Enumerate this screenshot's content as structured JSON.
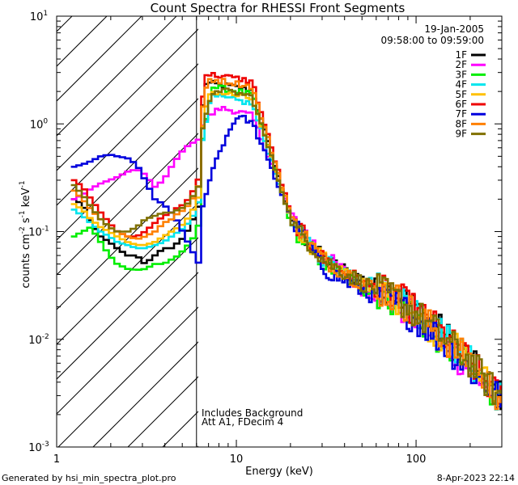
{
  "chart_data": {
    "type": "line",
    "title": "Count Spectra for RHESSI Front Segments",
    "xlabel": "Energy (keV)",
    "ylabel_parts": {
      "base": "counts cm",
      "exp1": "-2",
      "mid": " s",
      "exp2": "-1",
      "end": " keV",
      "exp3": "-1"
    },
    "xscale": "log",
    "yscale": "log",
    "xlim": [
      1,
      300
    ],
    "ylim": [
      0.001,
      10
    ],
    "x_ticks": [
      {
        "value": 1,
        "label": "1"
      },
      {
        "value": 10,
        "label": "10"
      },
      {
        "value": 100,
        "label": "100"
      }
    ],
    "y_ticks": [
      {
        "value": 10,
        "base": "10",
        "exp": "1"
      },
      {
        "value": 1,
        "base": "10",
        "exp": "0"
      },
      {
        "value": 0.1,
        "base": "10",
        "exp": "-1"
      },
      {
        "value": 0.01,
        "base": "10",
        "exp": "-2"
      },
      {
        "value": 0.001,
        "base": "10",
        "exp": "-3"
      }
    ],
    "shaded_region": {
      "x_min": 1,
      "x_max": 6,
      "pattern": "diagonal-hatch"
    },
    "date": "19-Jan-2005",
    "time_range": "09:58:00 to 09:59:00",
    "annotations": [
      "Includes Background",
      "Att A1, FDecim 4"
    ],
    "series": [
      {
        "name": "1F",
        "color": "#000000",
        "low": [
          [
            1.2,
            0.2
          ],
          [
            1.35,
            0.18
          ],
          [
            1.5,
            0.12
          ],
          [
            1.7,
            0.09
          ],
          [
            1.9,
            0.08
          ],
          [
            2.1,
            0.07
          ],
          [
            2.4,
            0.06
          ],
          [
            2.7,
            0.06
          ],
          [
            3.0,
            0.05
          ],
          [
            3.4,
            0.06
          ],
          [
            3.8,
            0.07
          ],
          [
            4.2,
            0.07
          ],
          [
            4.6,
            0.08
          ],
          [
            5.0,
            0.09
          ],
          [
            5.4,
            0.12
          ],
          [
            5.8,
            0.15
          ],
          [
            6.0,
            0.18
          ]
        ],
        "peak": [
          6.6,
          2.4
        ],
        "tail": [
          [
            20,
            0.12
          ],
          [
            30,
            0.055
          ],
          [
            50,
            0.035
          ],
          [
            80,
            0.025
          ],
          [
            120,
            0.015
          ],
          [
            200,
            0.006
          ],
          [
            280,
            0.003
          ]
        ]
      },
      {
        "name": "2F",
        "color": "#ff00ff",
        "low": [
          [
            1.2,
            0.2
          ],
          [
            1.35,
            0.22
          ],
          [
            1.5,
            0.25
          ],
          [
            1.7,
            0.28
          ],
          [
            1.9,
            0.3
          ],
          [
            2.1,
            0.32
          ],
          [
            2.4,
            0.36
          ],
          [
            2.7,
            0.38
          ],
          [
            3.0,
            0.34
          ],
          [
            3.4,
            0.26
          ],
          [
            3.8,
            0.3
          ],
          [
            4.2,
            0.4
          ],
          [
            4.6,
            0.5
          ],
          [
            5.0,
            0.6
          ],
          [
            5.4,
            0.65
          ],
          [
            5.8,
            0.7
          ],
          [
            6.0,
            0.72
          ]
        ],
        "peak": [
          8.0,
          1.4
        ],
        "tail": [
          [
            20,
            0.14
          ],
          [
            30,
            0.06
          ],
          [
            50,
            0.03
          ],
          [
            80,
            0.02
          ],
          [
            120,
            0.012
          ],
          [
            200,
            0.005
          ],
          [
            280,
            0.003
          ]
        ]
      },
      {
        "name": "3F",
        "color": "#00ee00",
        "low": [
          [
            1.2,
            0.09
          ],
          [
            1.35,
            0.1
          ],
          [
            1.5,
            0.11
          ],
          [
            1.7,
            0.08
          ],
          [
            1.9,
            0.06
          ],
          [
            2.1,
            0.05
          ],
          [
            2.4,
            0.045
          ],
          [
            2.7,
            0.044
          ],
          [
            3.0,
            0.045
          ],
          [
            3.4,
            0.05
          ],
          [
            3.8,
            0.05
          ],
          [
            4.2,
            0.055
          ],
          [
            4.6,
            0.06
          ],
          [
            5.0,
            0.07
          ],
          [
            5.4,
            0.08
          ],
          [
            5.8,
            0.1
          ],
          [
            6.0,
            0.12
          ]
        ],
        "peak": [
          7.2,
          2.2
        ],
        "tail": [
          [
            20,
            0.11
          ],
          [
            30,
            0.05
          ],
          [
            50,
            0.03
          ],
          [
            80,
            0.022
          ],
          [
            120,
            0.012
          ],
          [
            200,
            0.005
          ],
          [
            280,
            0.003
          ]
        ]
      },
      {
        "name": "4F",
        "color": "#00e5ee",
        "low": [
          [
            1.2,
            0.16
          ],
          [
            1.35,
            0.14
          ],
          [
            1.5,
            0.12
          ],
          [
            1.7,
            0.1
          ],
          [
            1.9,
            0.09
          ],
          [
            2.1,
            0.08
          ],
          [
            2.4,
            0.075
          ],
          [
            2.7,
            0.07
          ],
          [
            3.0,
            0.07
          ],
          [
            3.4,
            0.075
          ],
          [
            3.8,
            0.08
          ],
          [
            4.2,
            0.09
          ],
          [
            4.6,
            0.1
          ],
          [
            5.0,
            0.11
          ],
          [
            5.4,
            0.13
          ],
          [
            5.8,
            0.16
          ],
          [
            6.0,
            0.2
          ]
        ],
        "peak": [
          7.2,
          1.8
        ],
        "tail": [
          [
            20,
            0.12
          ],
          [
            30,
            0.055
          ],
          [
            50,
            0.035
          ],
          [
            80,
            0.025
          ],
          [
            120,
            0.014
          ],
          [
            200,
            0.006
          ],
          [
            280,
            0.003
          ]
        ]
      },
      {
        "name": "5F",
        "color": "#ffc000",
        "low": [
          [
            1.2,
            0.18
          ],
          [
            1.35,
            0.16
          ],
          [
            1.5,
            0.13
          ],
          [
            1.7,
            0.11
          ],
          [
            1.9,
            0.1
          ],
          [
            2.1,
            0.09
          ],
          [
            2.4,
            0.08
          ],
          [
            2.7,
            0.075
          ],
          [
            3.0,
            0.075
          ],
          [
            3.4,
            0.08
          ],
          [
            3.8,
            0.09
          ],
          [
            4.2,
            0.1
          ],
          [
            4.6,
            0.11
          ],
          [
            5.0,
            0.12
          ],
          [
            5.4,
            0.15
          ],
          [
            5.8,
            0.18
          ],
          [
            6.0,
            0.22
          ]
        ],
        "peak": [
          7.0,
          2.0
        ],
        "tail": [
          [
            20,
            0.12
          ],
          [
            30,
            0.055
          ],
          [
            50,
            0.033
          ],
          [
            80,
            0.023
          ],
          [
            120,
            0.013
          ],
          [
            200,
            0.006
          ],
          [
            280,
            0.003
          ]
        ]
      },
      {
        "name": "6F",
        "color": "#ee0000",
        "low": [
          [
            1.2,
            0.3
          ],
          [
            1.35,
            0.26
          ],
          [
            1.5,
            0.2
          ],
          [
            1.7,
            0.15
          ],
          [
            1.9,
            0.12
          ],
          [
            2.1,
            0.1
          ],
          [
            2.4,
            0.09
          ],
          [
            2.7,
            0.09
          ],
          [
            3.0,
            0.1
          ],
          [
            3.4,
            0.12
          ],
          [
            3.8,
            0.14
          ],
          [
            4.2,
            0.15
          ],
          [
            4.6,
            0.17
          ],
          [
            5.0,
            0.18
          ],
          [
            5.4,
            0.22
          ],
          [
            5.8,
            0.27
          ],
          [
            6.0,
            0.32
          ]
        ],
        "peak": [
          6.6,
          2.9
        ],
        "tail": [
          [
            20,
            0.13
          ],
          [
            30,
            0.055
          ],
          [
            50,
            0.033
          ],
          [
            80,
            0.024
          ],
          [
            120,
            0.014
          ],
          [
            200,
            0.006
          ],
          [
            280,
            0.003
          ]
        ]
      },
      {
        "name": "7F",
        "color": "#0000dd",
        "low": [
          [
            1.2,
            0.4
          ],
          [
            1.35,
            0.42
          ],
          [
            1.5,
            0.45
          ],
          [
            1.7,
            0.5
          ],
          [
            1.9,
            0.52
          ],
          [
            2.1,
            0.5
          ],
          [
            2.4,
            0.48
          ],
          [
            2.7,
            0.42
          ],
          [
            3.0,
            0.3
          ],
          [
            3.4,
            0.2
          ],
          [
            3.8,
            0.18
          ],
          [
            4.2,
            0.15
          ],
          [
            4.6,
            0.12
          ],
          [
            5.0,
            0.09
          ],
          [
            5.4,
            0.07
          ],
          [
            5.8,
            0.055
          ],
          [
            6.0,
            0.05
          ]
        ],
        "peak": [
          10.0,
          1.2
        ],
        "tail": [
          [
            20,
            0.13
          ],
          [
            30,
            0.045
          ],
          [
            50,
            0.028
          ],
          [
            80,
            0.02
          ],
          [
            120,
            0.012
          ],
          [
            200,
            0.005
          ],
          [
            280,
            0.003
          ]
        ]
      },
      {
        "name": "8F",
        "color": "#ff8000",
        "low": [
          [
            1.2,
            0.24
          ],
          [
            1.35,
            0.2
          ],
          [
            1.5,
            0.16
          ],
          [
            1.7,
            0.13
          ],
          [
            1.9,
            0.11
          ],
          [
            2.1,
            0.1
          ],
          [
            2.4,
            0.09
          ],
          [
            2.7,
            0.085
          ],
          [
            3.0,
            0.09
          ],
          [
            3.4,
            0.1
          ],
          [
            3.8,
            0.12
          ],
          [
            4.2,
            0.13
          ],
          [
            4.6,
            0.15
          ],
          [
            5.0,
            0.16
          ],
          [
            5.4,
            0.19
          ],
          [
            5.8,
            0.23
          ],
          [
            6.0,
            0.28
          ]
        ],
        "peak": [
          6.8,
          2.6
        ],
        "tail": [
          [
            20,
            0.13
          ],
          [
            30,
            0.055
          ],
          [
            50,
            0.033
          ],
          [
            80,
            0.023
          ],
          [
            120,
            0.013
          ],
          [
            200,
            0.006
          ],
          [
            280,
            0.003
          ]
        ]
      },
      {
        "name": "9F",
        "color": "#807000",
        "low": [
          [
            1.2,
            0.27
          ],
          [
            1.35,
            0.22
          ],
          [
            1.5,
            0.17
          ],
          [
            1.7,
            0.13
          ],
          [
            1.9,
            0.11
          ],
          [
            2.1,
            0.1
          ],
          [
            2.4,
            0.1
          ],
          [
            2.7,
            0.11
          ],
          [
            3.0,
            0.13
          ],
          [
            3.4,
            0.14
          ],
          [
            3.8,
            0.15
          ],
          [
            4.2,
            0.15
          ],
          [
            4.6,
            0.16
          ],
          [
            5.0,
            0.17
          ],
          [
            5.4,
            0.2
          ],
          [
            5.8,
            0.24
          ],
          [
            6.0,
            0.27
          ]
        ],
        "peak": [
          7.4,
          2.1
        ],
        "tail": [
          [
            20,
            0.12
          ],
          [
            30,
            0.055
          ],
          [
            50,
            0.033
          ],
          [
            80,
            0.023
          ],
          [
            120,
            0.013
          ],
          [
            200,
            0.006
          ],
          [
            280,
            0.003
          ]
        ]
      }
    ]
  },
  "footer": {
    "left": "Generated by hsi_min_spectra_plot.pro",
    "right": "8-Apr-2023 22:14"
  }
}
